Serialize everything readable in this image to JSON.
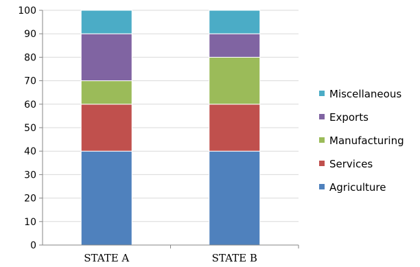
{
  "chart_data": {
    "type": "bar",
    "stacked": true,
    "categories": [
      "STATE A",
      "STATE B"
    ],
    "series": [
      {
        "name": "Agriculture",
        "values": [
          40,
          40
        ],
        "color": "#4f81bd"
      },
      {
        "name": "Services",
        "values": [
          20,
          20
        ],
        "color": "#c0504d"
      },
      {
        "name": "Manufacturing",
        "values": [
          10,
          20
        ],
        "color": "#9bbb59"
      },
      {
        "name": "Exports",
        "values": [
          20,
          10
        ],
        "color": "#8064a2"
      },
      {
        "name": "Miscellaneous",
        "values": [
          10,
          10
        ],
        "color": "#4bacc6"
      }
    ],
    "yticks": [
      "0",
      "10",
      "20",
      "30",
      "40",
      "50",
      "60",
      "70",
      "80",
      "90",
      "100"
    ],
    "ylim": [
      0,
      100
    ],
    "grid": true,
    "legend_position": "right",
    "title": "",
    "xlabel": "",
    "ylabel": ""
  }
}
